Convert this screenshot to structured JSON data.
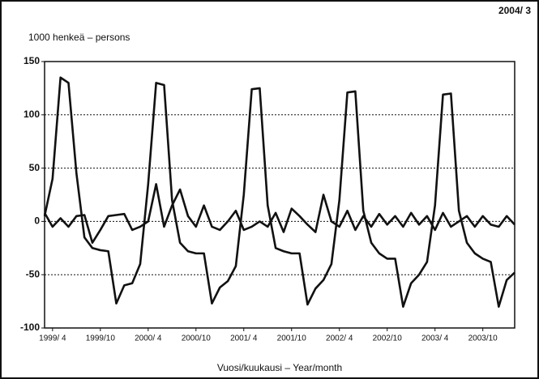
{
  "chart_data": {
    "type": "line",
    "date": "2004/ 3",
    "y_label": "1000 henkeä – persons",
    "x_label": "Vuosi/kuukausi – Year/month",
    "categories": [
      null,
      "1999/ 4",
      null,
      null,
      null,
      null,
      null,
      "1999/10",
      null,
      null,
      null,
      null,
      null,
      "2000/ 4",
      null,
      null,
      null,
      null,
      null,
      "2000/10",
      null,
      null,
      null,
      null,
      null,
      "2001/ 4",
      null,
      null,
      null,
      null,
      null,
      "2001/10",
      null,
      null,
      null,
      null,
      null,
      "2002/ 4",
      null,
      null,
      null,
      null,
      null,
      "2002/10",
      null,
      null,
      null,
      null,
      null,
      "2003/ 4",
      null,
      null,
      null,
      null,
      null,
      "2003/10",
      null,
      null,
      null,
      null
    ],
    "series": [
      {
        "color": "#111111",
        "values": [
          5,
          40,
          135,
          130,
          45,
          -15,
          -25,
          -27,
          -28,
          -77,
          -60,
          -58,
          -40,
          35,
          130,
          128,
          20,
          -20,
          -28,
          -30,
          -30,
          -77,
          -62,
          -56,
          -42,
          25,
          124,
          125,
          15,
          -25,
          -28,
          -30,
          -30,
          -78,
          -63,
          -55,
          -40,
          20,
          121,
          122,
          10,
          -20,
          -30,
          -35,
          -35,
          -80,
          -58,
          -50,
          -38,
          15,
          119,
          120,
          10,
          -20,
          -30,
          -35,
          -38,
          -80,
          -55,
          -48
        ]
      },
      {
        "color": "#111111",
        "values": [
          8,
          -5,
          3,
          -5,
          5,
          6,
          -20,
          -8,
          5,
          6,
          7,
          -8,
          -5,
          0,
          35,
          -5,
          15,
          30,
          5,
          -5,
          15,
          -5,
          -8,
          0,
          10,
          -8,
          -5,
          0,
          -5,
          8,
          -10,
          12,
          5,
          -3,
          -10,
          25,
          0,
          -5,
          10,
          -8,
          5,
          -5,
          7,
          -3,
          5,
          -5,
          8,
          -3,
          5,
          -8,
          8,
          -5,
          0,
          5,
          -5,
          5,
          -3,
          -5,
          5,
          -3
        ]
      }
    ],
    "ylim": [
      -100,
      150
    ],
    "yticks": [
      -100,
      -50,
      0,
      50,
      100,
      150
    ],
    "grid": true
  }
}
